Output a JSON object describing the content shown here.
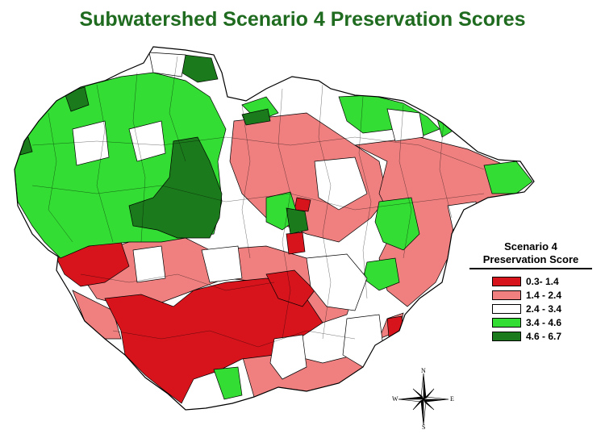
{
  "title": "Subwatershed Scenario 4 Preservation Scores",
  "legend": {
    "title_line1": "Scenario 4",
    "title_line2": "Preservation Score",
    "classes": [
      {
        "label": "0.3- 1.4",
        "color": "#d7141c"
      },
      {
        "label": "1.4 - 2.4",
        "color": "#f08080"
      },
      {
        "label": "2.4 - 3.4",
        "color": "#ffffff"
      },
      {
        "label": "3.4 - 4.6",
        "color": "#33dd33"
      },
      {
        "label": "4.6 - 6.7",
        "color": "#1b7a1b"
      }
    ]
  },
  "compass": {
    "north": "N",
    "south": "S",
    "east": "E",
    "west": "W"
  }
}
